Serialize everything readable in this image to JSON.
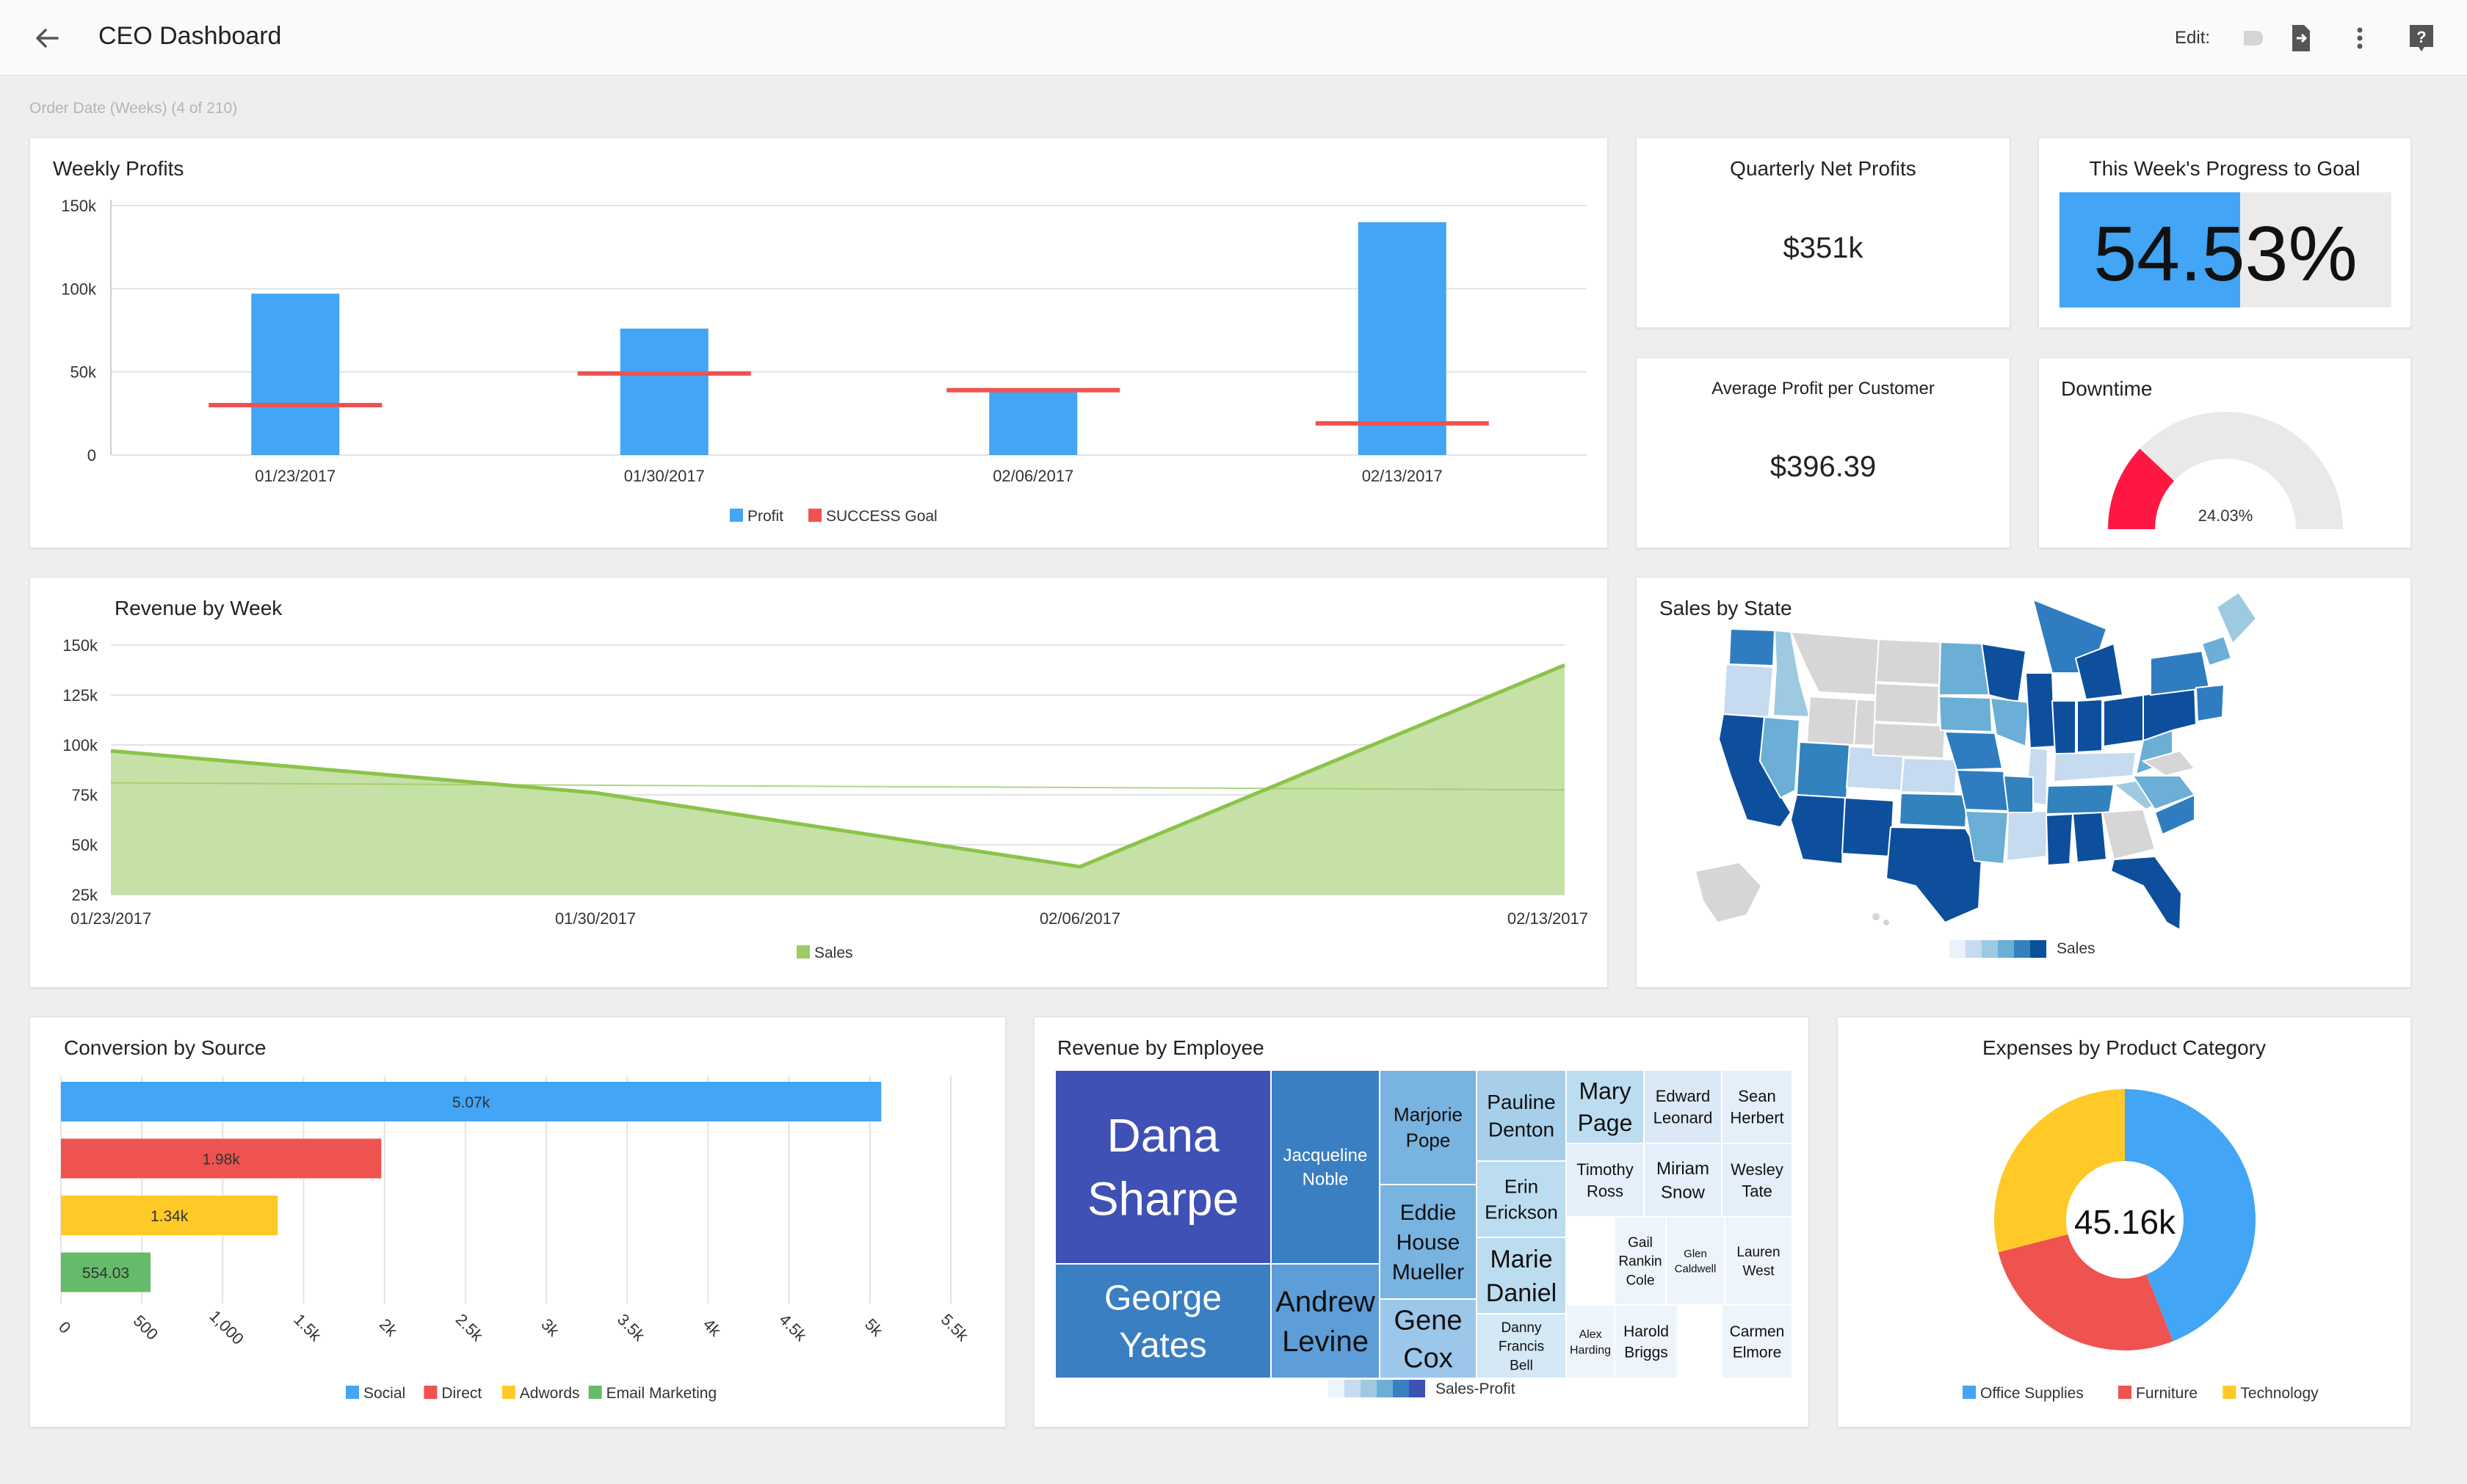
{
  "header": {
    "title": "CEO Dashboard",
    "edit_label": "Edit:"
  },
  "filter_info": "Order Date (Weeks) (4 of 210)",
  "weekly_profits": {
    "title": "Weekly Profits",
    "chart_data": {
      "type": "bar",
      "categories": [
        "01/23/2017",
        "01/30/2017",
        "02/06/2017",
        "02/13/2017"
      ],
      "series": [
        {
          "name": "Profit",
          "values": [
            97000,
            76000,
            38000,
            140000
          ],
          "color": "#42a5f5"
        },
        {
          "name": "SUCCESS Goal",
          "values": [
            30000,
            49000,
            39000,
            19000
          ],
          "color": "#ef5350"
        }
      ],
      "y_ticks": [
        "0",
        "50k",
        "100k",
        "150k"
      ],
      "ylim": [
        0,
        150000
      ],
      "legend": "bottom"
    }
  },
  "quarterly_net_profits": {
    "title": "Quarterly Net Profits",
    "value": "$351k"
  },
  "weekly_progress": {
    "title": "This Week's Progress to Goal",
    "value": "54.53%",
    "fraction": 0.5453,
    "color": "#42a5f5"
  },
  "avg_profit_per_customer": {
    "title": "Average Profit per Customer",
    "value": "$396.39"
  },
  "downtime": {
    "title": "Downtime",
    "value": "24.03%",
    "fraction": 0.2403,
    "color": "#ff1744"
  },
  "revenue_by_week": {
    "title": "Revenue by Week",
    "chart_data": {
      "type": "area",
      "x": [
        "01/23/2017",
        "01/30/2017",
        "02/06/2017",
        "02/13/2017"
      ],
      "series": [
        {
          "name": "Sales",
          "values": [
            97000,
            76000,
            39000,
            140000
          ],
          "color": "#8bc34a"
        }
      ],
      "trend_values": [
        81000,
        77500
      ],
      "y_ticks": [
        "25k",
        "50k",
        "75k",
        "100k",
        "125k",
        "150k"
      ],
      "ylim": [
        25000,
        150000
      ],
      "legend": "bottom"
    }
  },
  "sales_by_state": {
    "title": "Sales by State",
    "legend_label": "Sales",
    "scale_colors": [
      "#eaf2fb",
      "#c6dbef",
      "#9ecae1",
      "#6baed6",
      "#3182bd",
      "#08519c"
    ]
  },
  "conversion_by_source": {
    "title": "Conversion by Source",
    "chart_data": {
      "type": "bar",
      "orientation": "horizontal",
      "categories": [
        "Social",
        "Direct",
        "Adwords",
        "Email Marketing"
      ],
      "values": [
        5070,
        1980,
        1340,
        554.03
      ],
      "labels": [
        "5.07k",
        "1.98k",
        "1.34k",
        "554.03"
      ],
      "colors": [
        "#42a5f5",
        "#ef5350",
        "#ffca28",
        "#66bb6a"
      ],
      "x_ticks": [
        "0",
        "500",
        "1,000",
        "1.5k",
        "2k",
        "2.5k",
        "3k",
        "3.5k",
        "4k",
        "4.5k",
        "5k",
        "5.5k"
      ],
      "xlim": [
        0,
        5500
      ],
      "legend": "bottom"
    }
  },
  "revenue_by_employee": {
    "title": "Revenue by Employee",
    "legend_label": "Sales-Profit",
    "cells": [
      {
        "name": "Dana Sharpe"
      },
      {
        "name": "George Yates"
      },
      {
        "name": "Jacqueline Noble"
      },
      {
        "name": "Andrew Levine"
      },
      {
        "name": "Marjorie Pope"
      },
      {
        "name": "Eddie House Mueller"
      },
      {
        "name": "Gene Cox"
      },
      {
        "name": "Pauline Denton"
      },
      {
        "name": "Erin Erickson"
      },
      {
        "name": "Marie Daniel"
      },
      {
        "name": "Danny Francis Bell"
      },
      {
        "name": "Mary Page"
      },
      {
        "name": "Edward Leonard"
      },
      {
        "name": "Sean Herbert"
      },
      {
        "name": "Timothy Ross"
      },
      {
        "name": "Miriam Snow"
      },
      {
        "name": "Wesley Tate"
      },
      {
        "name": "Gail Rankin Cole"
      },
      {
        "name": "Glen Caldwell"
      },
      {
        "name": "Lauren West"
      },
      {
        "name": "Alex Harding"
      },
      {
        "name": "Harold Briggs"
      },
      {
        "name": "Carmen Elmore"
      }
    ]
  },
  "expenses_by_category": {
    "title": "Expenses by Product Category",
    "center_value": "45.16k",
    "chart_data": {
      "type": "pie",
      "categories": [
        "Office Supplies",
        "Furniture",
        "Technology"
      ],
      "values": [
        44,
        27,
        29
      ],
      "colors": [
        "#42a5f5",
        "#ef5350",
        "#ffca28"
      ],
      "legend": "bottom"
    }
  }
}
